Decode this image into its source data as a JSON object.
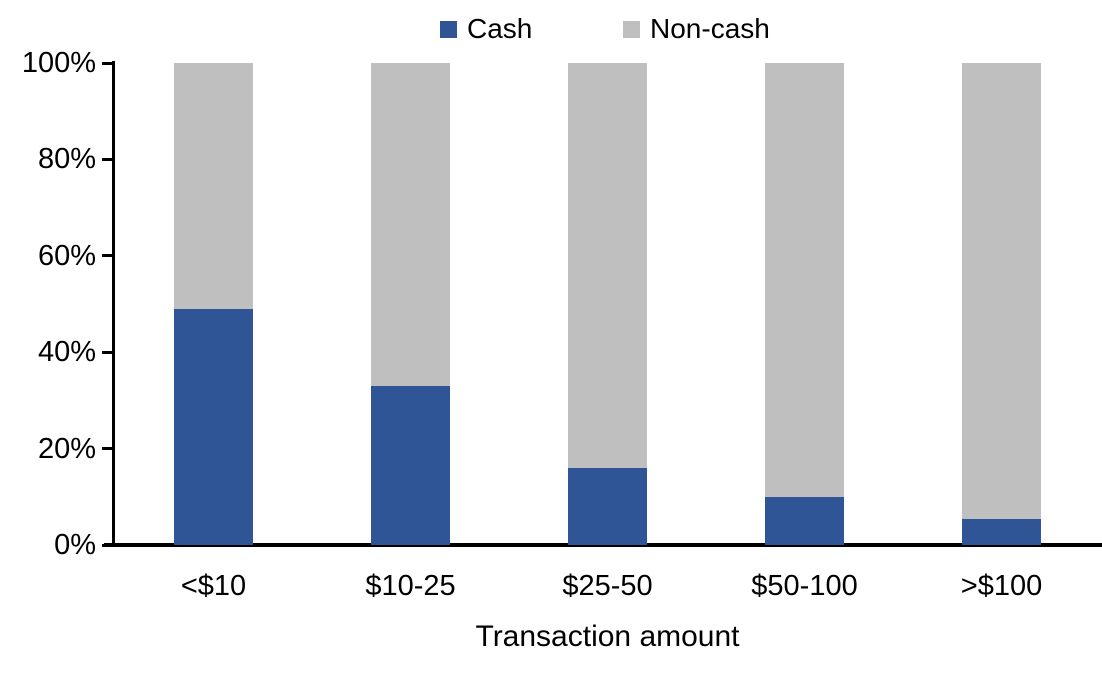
{
  "chart_data": {
    "type": "bar",
    "stacked": true,
    "title": "",
    "xlabel": "Transaction amount",
    "ylabel": "",
    "categories": [
      "<$10",
      "$10-25",
      "$25-50",
      "$50-100",
      ">$100"
    ],
    "series": [
      {
        "name": "Cash",
        "color": "#2F5597",
        "values": [
          49,
          33,
          16,
          10,
          5.5
        ]
      },
      {
        "name": "Non-cash",
        "color": "#BFBFBF",
        "values": [
          51,
          67,
          84,
          90,
          94.5
        ]
      }
    ],
    "ylim": [
      0,
      100
    ],
    "ytick_labels": [
      "0%",
      "20%",
      "40%",
      "60%",
      "80%",
      "100%"
    ],
    "ytick_values": [
      0,
      20,
      40,
      60,
      80,
      100
    ],
    "grid": "off",
    "legend_position": "top-center",
    "axis_color": "#000000"
  }
}
